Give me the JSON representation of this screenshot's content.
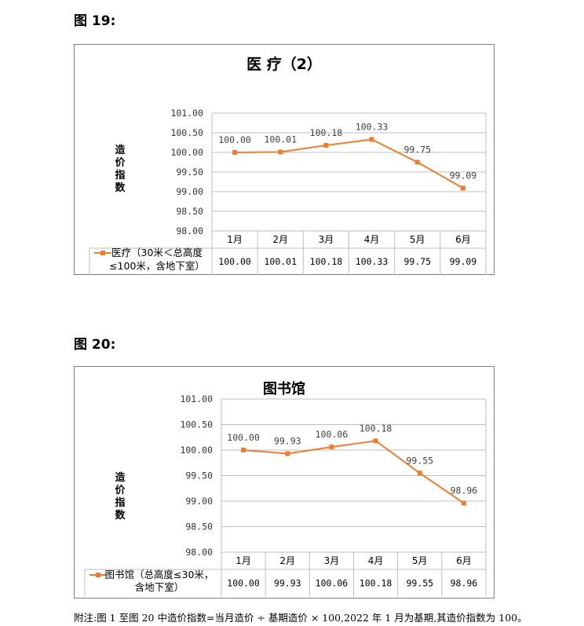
{
  "figures": [
    {
      "caption": "图 19:",
      "title": "医  疗（2）",
      "ylabel": [
        "造",
        "价",
        "指",
        "数"
      ]
    },
    {
      "caption": "图 20:",
      "title": "图书馆",
      "ylabel": [
        "造",
        "价",
        "指",
        "数"
      ]
    }
  ],
  "footnote": "附注:图 1 至图 20 中造价指数=当月造价 ÷ 基期造价 × 100,2022 年 1 月为基期,其造价指数为 100。",
  "chart_data": [
    {
      "type": "line",
      "title": "医  疗（2）",
      "ylabel": "造价指数",
      "categories": [
        "1月",
        "2月",
        "3月",
        "4月",
        "5月",
        "6月"
      ],
      "series": [
        {
          "name": "医疗（30米＜总高度≤100米，含地下室）",
          "values": [
            100.0,
            100.01,
            100.18,
            100.33,
            99.75,
            99.09
          ],
          "labels": [
            "100.00",
            "100.01",
            "100.18",
            "100.33",
            "99.75",
            "99.09"
          ]
        }
      ],
      "yticks": [
        "101.00",
        "100.50",
        "100.00",
        "99.50",
        "99.00",
        "98.50",
        "98.00"
      ],
      "ylim": [
        98.0,
        101.0
      ],
      "grid": true,
      "legend": "data-table",
      "color": "#ed7d31"
    },
    {
      "type": "line",
      "title": "图书馆",
      "ylabel": "造价指数",
      "categories": [
        "1月",
        "2月",
        "3月",
        "4月",
        "5月",
        "6月"
      ],
      "series": [
        {
          "name": "图书馆（总高度≤30米，含地下室）",
          "values": [
            100.0,
            99.93,
            100.06,
            100.18,
            99.55,
            98.96
          ],
          "labels": [
            "100.00",
            "99.93",
            "100.06",
            "100.18",
            "99.55",
            "98.96"
          ]
        }
      ],
      "yticks": [
        "101.00",
        "100.50",
        "100.00",
        "99.50",
        "99.00",
        "98.50",
        "98.00"
      ],
      "ylim": [
        98.0,
        101.0
      ],
      "grid": true,
      "legend": "data-table",
      "color": "#ed7d31"
    }
  ]
}
